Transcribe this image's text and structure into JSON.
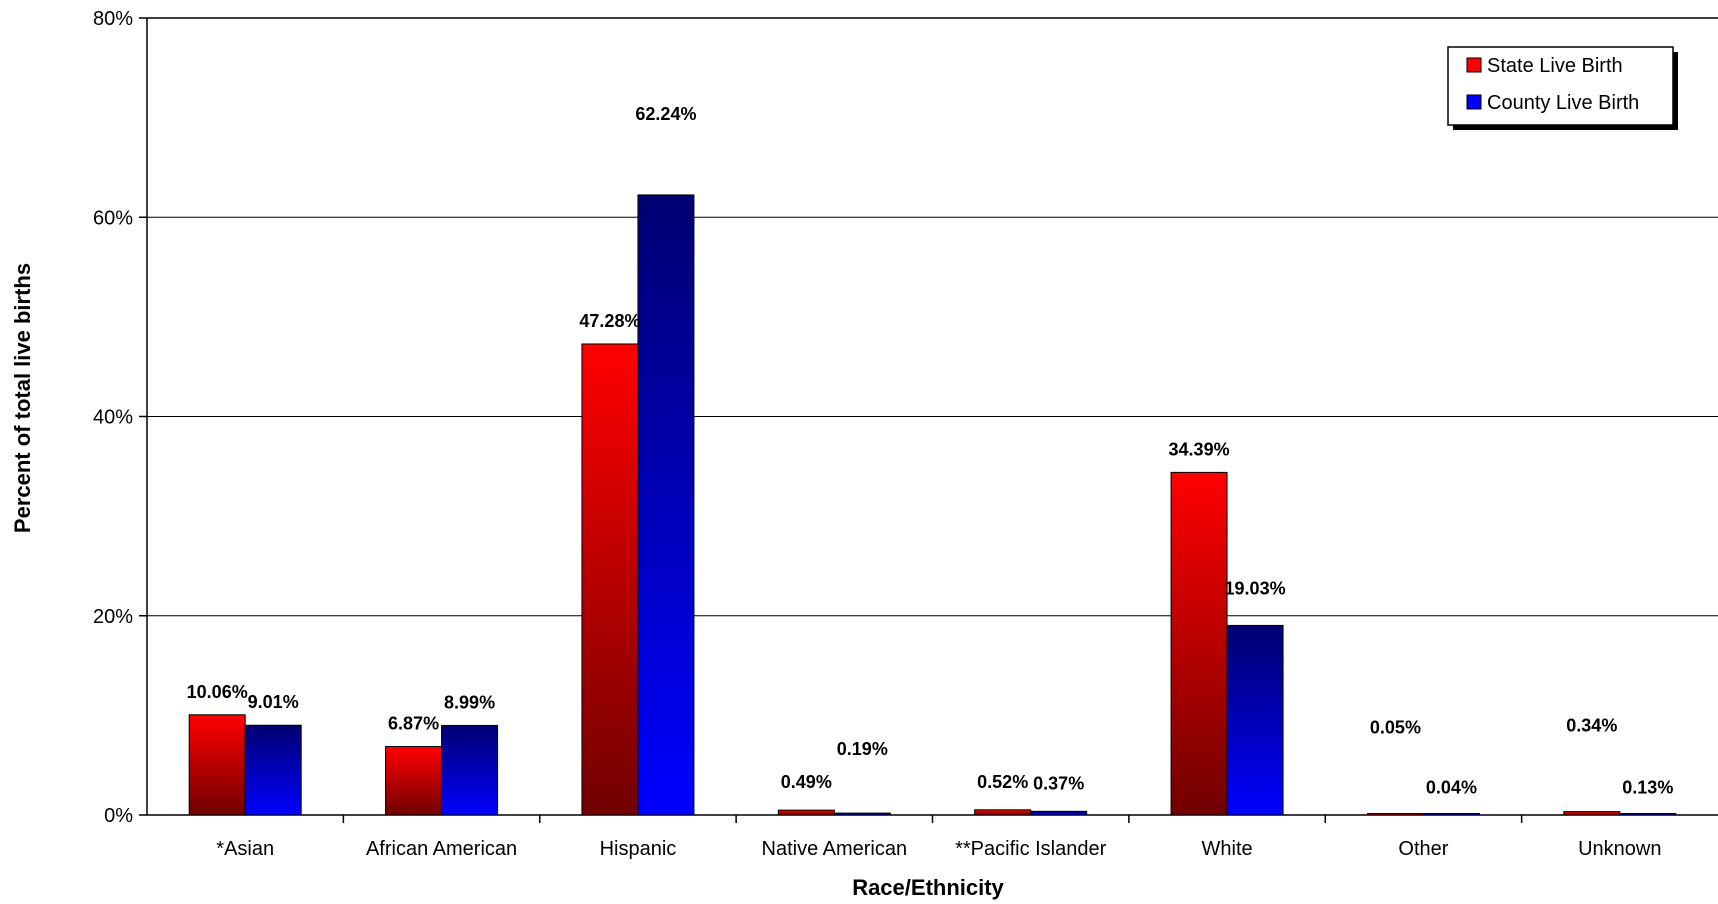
{
  "chart_data": {
    "type": "bar",
    "title": "",
    "xlabel": "Race/Ethnicity",
    "ylabel": "Percent of total live births",
    "categories": [
      "*Asian",
      "African American",
      "Hispanic",
      "Native American",
      "**Pacific Islander",
      "White",
      "Other",
      "Unknown"
    ],
    "series": [
      {
        "name": "State Live Birth",
        "values": [
          10.06,
          6.87,
          47.28,
          0.49,
          0.52,
          34.39,
          0.05,
          0.34
        ],
        "labels": [
          "10.06%",
          "6.87%",
          "47.28%",
          "0.49%",
          "0.52%",
          "34.39%",
          "0.05%",
          "0.34%"
        ],
        "color": "#ff0000",
        "color_dark": "#7a0000"
      },
      {
        "name": "County Live Birth",
        "values": [
          9.01,
          8.99,
          62.24,
          0.19,
          0.37,
          19.03,
          0.04,
          0.13
        ],
        "labels": [
          "9.01%",
          "8.99%",
          "62.24%",
          "0.19%",
          "0.37%",
          "19.03%",
          "0.04%",
          "0.13%"
        ],
        "color": "#0000ff",
        "color_dark": "#000080"
      }
    ],
    "ylim": [
      0,
      80
    ],
    "yticks": [
      "0%",
      "20%",
      "40%",
      "60%",
      "80%"
    ],
    "ytick_values": [
      0,
      20,
      40,
      60,
      80
    ],
    "grid": true,
    "legend_position": "top-right"
  }
}
